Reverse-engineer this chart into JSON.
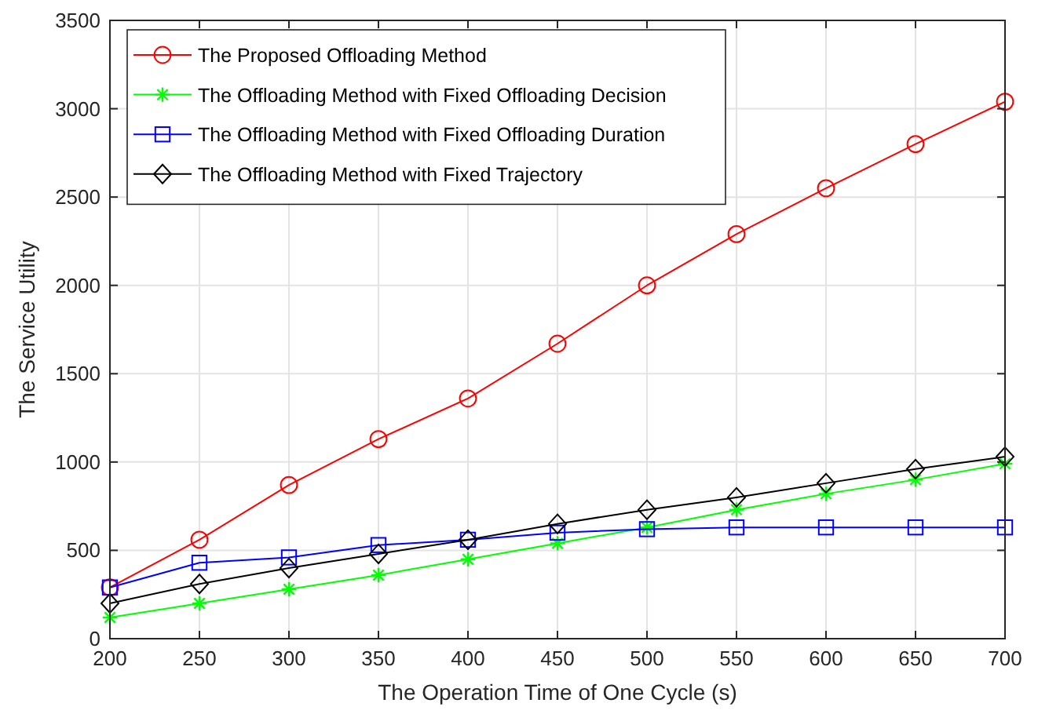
{
  "chart_data": {
    "type": "line",
    "xlabel": "The Operation Time of One Cycle (s)",
    "ylabel": "The Service Utility",
    "x": [
      200,
      250,
      300,
      350,
      400,
      450,
      500,
      550,
      600,
      650,
      700
    ],
    "series": [
      {
        "name": "The Proposed Offloading Method",
        "color": "#ff0000",
        "marker": "circle",
        "values": [
          290,
          560,
          870,
          1130,
          1360,
          1670,
          2000,
          2290,
          2550,
          2800,
          3040
        ]
      },
      {
        "name": "The Offloading Method with Fixed Offloading Decision",
        "color": "#00ff00",
        "marker": "cross",
        "values": [
          120,
          200,
          280,
          360,
          450,
          540,
          630,
          730,
          820,
          900,
          990
        ]
      },
      {
        "name": "The Offloading Method with Fixed Offloading Duration",
        "color": "#0000ff",
        "marker": "square",
        "values": [
          290,
          430,
          460,
          530,
          560,
          600,
          620,
          630,
          630,
          630,
          630
        ]
      },
      {
        "name": "The Offloading Method with Fixed Trajectory",
        "color": "#000000",
        "marker": "diamond",
        "values": [
          200,
          310,
          400,
          480,
          560,
          650,
          730,
          800,
          880,
          960,
          1030
        ]
      }
    ],
    "xlim": [
      200,
      700
    ],
    "xticks": [
      200,
      250,
      300,
      350,
      400,
      450,
      500,
      550,
      600,
      650,
      700
    ],
    "ylim": [
      0,
      3500
    ],
    "yticks": [
      0,
      500,
      1000,
      1500,
      2000,
      2500,
      3000,
      3500
    ],
    "grid": true,
    "legend": "top left",
    "line_style": "solid"
  }
}
